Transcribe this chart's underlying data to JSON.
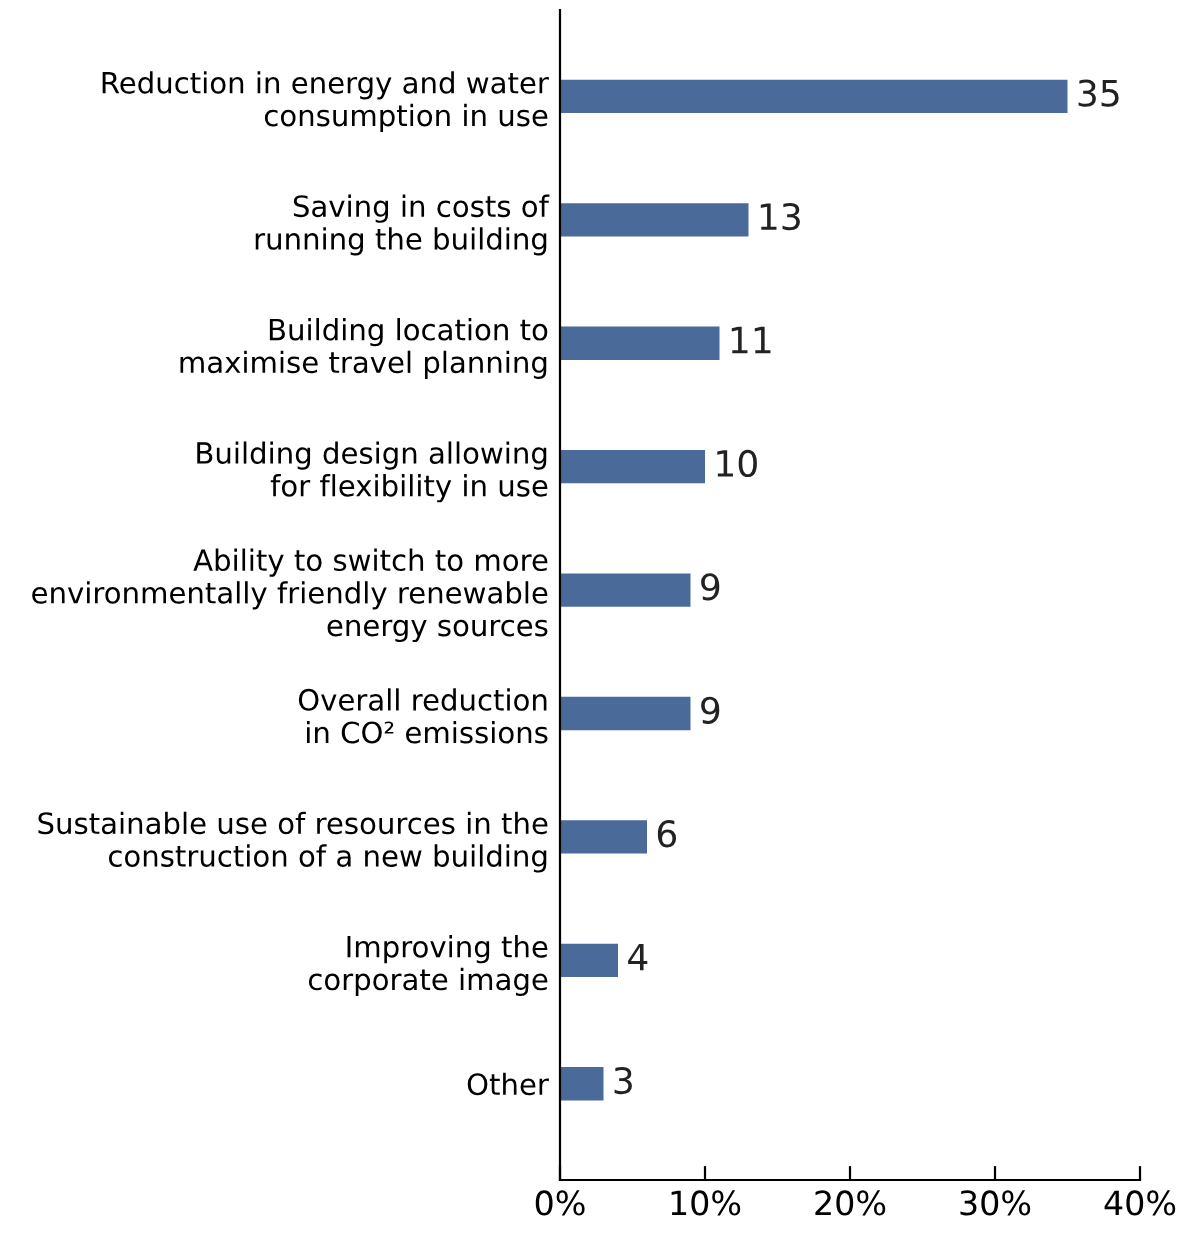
{
  "chart_data": {
    "type": "bar",
    "orientation": "horizontal",
    "categories": [
      "Reduction in energy and water\nconsumption in use",
      "Saving in costs of\nrunning the building",
      "Building location to\nmaximise travel planning",
      "Building design allowing\nfor flexibility in use",
      "Ability to switch to more\nenvironmentally friendly renewable\nenergy sources",
      "Overall reduction\nin CO² emissions",
      "Sustainable use of resources in the\nconstruction of a new building",
      "Improving the\ncorporate image",
      "Other"
    ],
    "values": [
      35,
      13,
      11,
      10,
      9,
      9,
      6,
      4,
      3
    ],
    "color": "#4a6a9a",
    "xlim": [
      0,
      40
    ],
    "xticks": [
      {
        "value": 0,
        "label": "0%"
      },
      {
        "value": 10,
        "label": "10%"
      },
      {
        "value": 20,
        "label": "20%"
      },
      {
        "value": 30,
        "label": "30%"
      },
      {
        "value": 40,
        "label": "40%"
      }
    ],
    "data_labels": true,
    "grid": false,
    "legend": false
  }
}
